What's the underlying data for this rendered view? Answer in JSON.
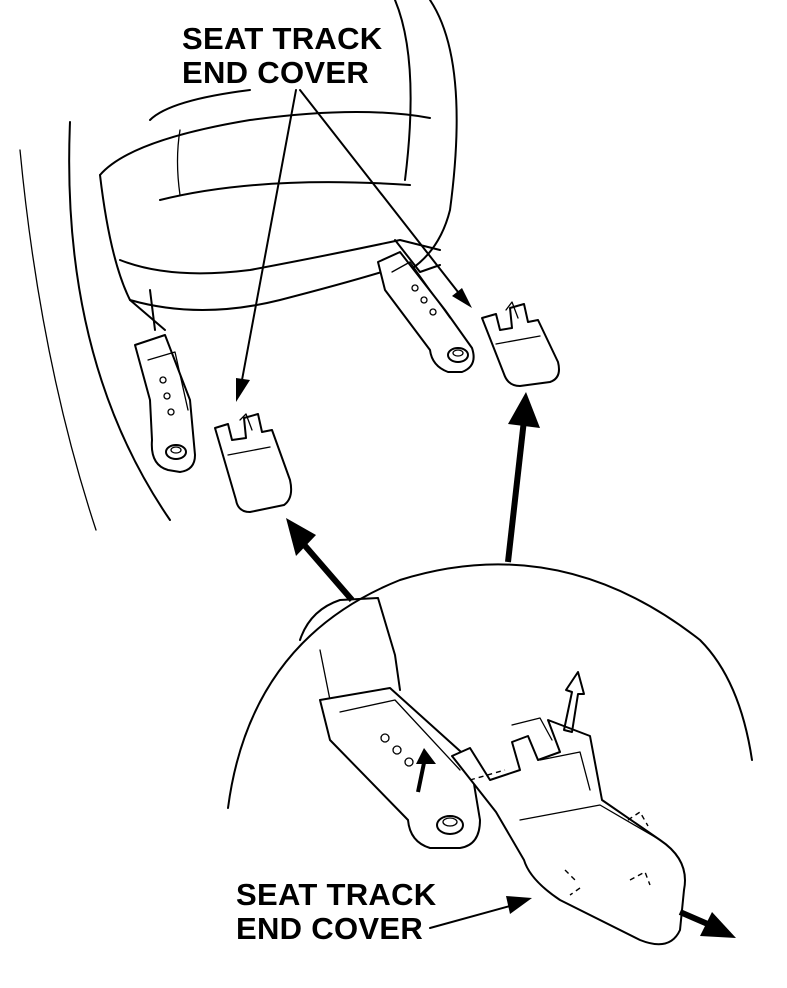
{
  "labels": {
    "top_callout": {
      "line1": "SEAT TRACK",
      "line2": "END COVER"
    },
    "bottom_callout": {
      "line1": "SEAT TRACK",
      "line2": "END COVER"
    }
  }
}
